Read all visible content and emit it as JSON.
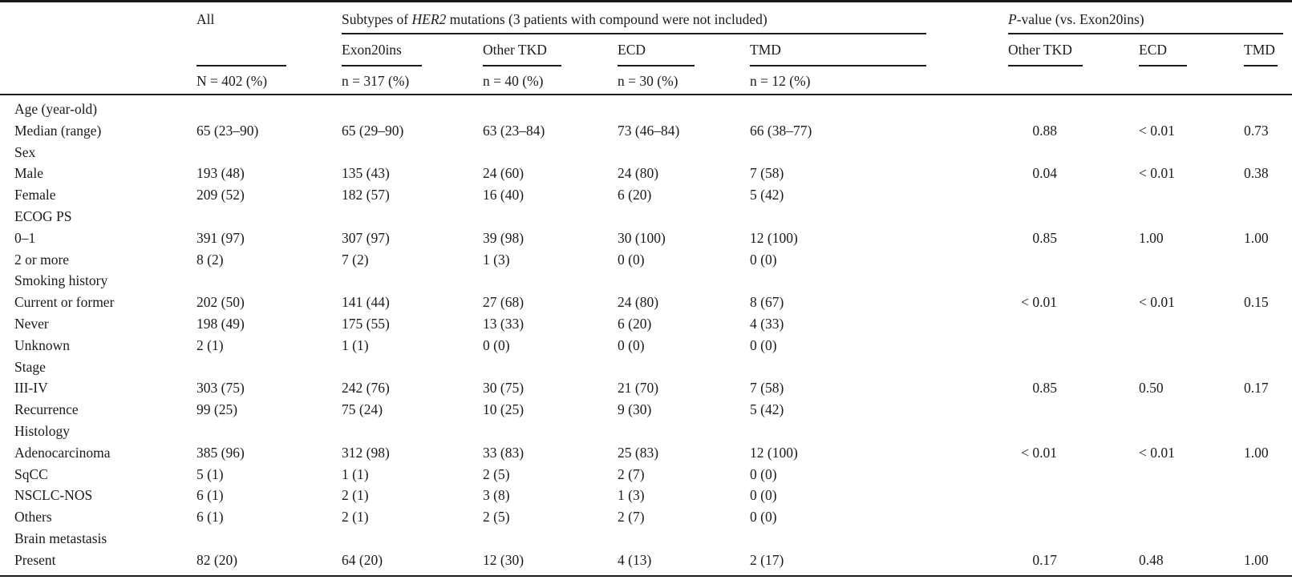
{
  "colors": {
    "background": "#ffffff",
    "text": "#1b1b1b",
    "rule": "#1a1a1a"
  },
  "table": {
    "header": {
      "all": {
        "label": "All",
        "count": "N = 402 (%)"
      },
      "subtypes_group": {
        "prefix": "Subtypes of ",
        "gene": "HER2",
        "suffix": " mutations (3 patients with compound were not included)"
      },
      "pvalue_group": {
        "italic": "P",
        "rest": "-value (vs. Exon20ins)"
      },
      "subtype_columns": [
        {
          "label": "Exon20ins",
          "count": "n = 317 (%)"
        },
        {
          "label": "Other TKD",
          "count": "n = 40 (%)"
        },
        {
          "label": "ECD",
          "count": "n = 30 (%)"
        },
        {
          "label": "TMD",
          "count": "n = 12 (%)"
        }
      ],
      "pvalue_columns": [
        {
          "label": "Other TKD"
        },
        {
          "label": "ECD"
        },
        {
          "label": "TMD"
        }
      ]
    },
    "rows": [
      {
        "type": "section",
        "label": "Age (year-old)",
        "values": [
          "",
          "",
          "",
          "",
          ""
        ],
        "pvalues": [
          "",
          "",
          ""
        ]
      },
      {
        "type": "data",
        "label": "Median (range)",
        "values": [
          "65 (23–90)",
          "65 (29–90)",
          "63 (23–84)",
          "73 (46–84)",
          "66 (38–77)"
        ],
        "pvalues": [
          "0.88",
          "< 0.01",
          "0.73"
        ]
      },
      {
        "type": "section",
        "label": "Sex",
        "values": [
          "",
          "",
          "",
          "",
          ""
        ],
        "pvalues": [
          "",
          "",
          ""
        ]
      },
      {
        "type": "data",
        "label": "Male",
        "values": [
          "193 (48)",
          "135 (43)",
          "24 (60)",
          "24 (80)",
          "7 (58)"
        ],
        "pvalues": [
          "0.04",
          "< 0.01",
          "0.38"
        ]
      },
      {
        "type": "data",
        "label": "Female",
        "values": [
          "209 (52)",
          "182 (57)",
          "16 (40)",
          "6 (20)",
          "5 (42)"
        ],
        "pvalues": [
          "",
          "",
          ""
        ]
      },
      {
        "type": "section",
        "label": "ECOG PS",
        "values": [
          "",
          "",
          "",
          "",
          ""
        ],
        "pvalues": [
          "",
          "",
          ""
        ]
      },
      {
        "type": "data",
        "label": "0–1",
        "values": [
          "391 (97)",
          "307 (97)",
          "39 (98)",
          "30 (100)",
          "12 (100)"
        ],
        "pvalues": [
          "0.85",
          "1.00",
          "1.00"
        ]
      },
      {
        "type": "data",
        "label": "2 or more",
        "values": [
          "8 (2)",
          "7 (2)",
          "1 (3)",
          "0 (0)",
          "0 (0)"
        ],
        "pvalues": [
          "",
          "",
          ""
        ]
      },
      {
        "type": "section",
        "label": "Smoking history",
        "values": [
          "",
          "",
          "",
          "",
          ""
        ],
        "pvalues": [
          "",
          "",
          ""
        ]
      },
      {
        "type": "data",
        "label": "Current or former",
        "values": [
          "202 (50)",
          "141 (44)",
          "27 (68)",
          "24 (80)",
          "8 (67)"
        ],
        "pvalues": [
          "< 0.01",
          "< 0.01",
          "0.15"
        ]
      },
      {
        "type": "data",
        "label": "Never",
        "values": [
          "198 (49)",
          "175 (55)",
          "13 (33)",
          "6 (20)",
          "4 (33)"
        ],
        "pvalues": [
          "",
          "",
          ""
        ]
      },
      {
        "type": "data",
        "label": "Unknown",
        "values": [
          "2 (1)",
          "1 (1)",
          "0 (0)",
          "0 (0)",
          "0 (0)"
        ],
        "pvalues": [
          "",
          "",
          ""
        ]
      },
      {
        "type": "section",
        "label": "Stage",
        "values": [
          "",
          "",
          "",
          "",
          ""
        ],
        "pvalues": [
          "",
          "",
          ""
        ]
      },
      {
        "type": "data",
        "label": "III-IV",
        "values": [
          "303 (75)",
          "242 (76)",
          "30 (75)",
          "21 (70)",
          "7 (58)"
        ],
        "pvalues": [
          "0.85",
          "0.50",
          "0.17"
        ]
      },
      {
        "type": "data",
        "label": "Recurrence",
        "values": [
          "99 (25)",
          "75 (24)",
          "10 (25)",
          "9 (30)",
          "5 (42)"
        ],
        "pvalues": [
          "",
          "",
          ""
        ]
      },
      {
        "type": "section",
        "label": "Histology",
        "values": [
          "",
          "",
          "",
          "",
          ""
        ],
        "pvalues": [
          "",
          "",
          ""
        ]
      },
      {
        "type": "data",
        "label": "Adenocarcinoma",
        "values": [
          "385 (96)",
          "312 (98)",
          "33 (83)",
          "25 (83)",
          "12 (100)"
        ],
        "pvalues": [
          "< 0.01",
          "< 0.01",
          "1.00"
        ]
      },
      {
        "type": "data",
        "label": "SqCC",
        "values": [
          "5 (1)",
          "1 (1)",
          "2 (5)",
          "2 (7)",
          "0 (0)"
        ],
        "pvalues": [
          "",
          "",
          ""
        ]
      },
      {
        "type": "data",
        "label": "NSCLC-NOS",
        "values": [
          "6 (1)",
          "2 (1)",
          "3 (8)",
          "1 (3)",
          "0 (0)"
        ],
        "pvalues": [
          "",
          "",
          ""
        ]
      },
      {
        "type": "data",
        "label": "Others",
        "values": [
          "6 (1)",
          "2 (1)",
          "2 (5)",
          "2 (7)",
          "0 (0)"
        ],
        "pvalues": [
          "",
          "",
          ""
        ]
      },
      {
        "type": "section",
        "label": "Brain metastasis",
        "values": [
          "",
          "",
          "",
          "",
          ""
        ],
        "pvalues": [
          "",
          "",
          ""
        ]
      },
      {
        "type": "data",
        "label": "Present",
        "values": [
          "82 (20)",
          "64 (20)",
          "12 (30)",
          "4 (13)",
          "2 (17)"
        ],
        "pvalues": [
          "0.17",
          "0.48",
          "1.00"
        ]
      }
    ]
  }
}
